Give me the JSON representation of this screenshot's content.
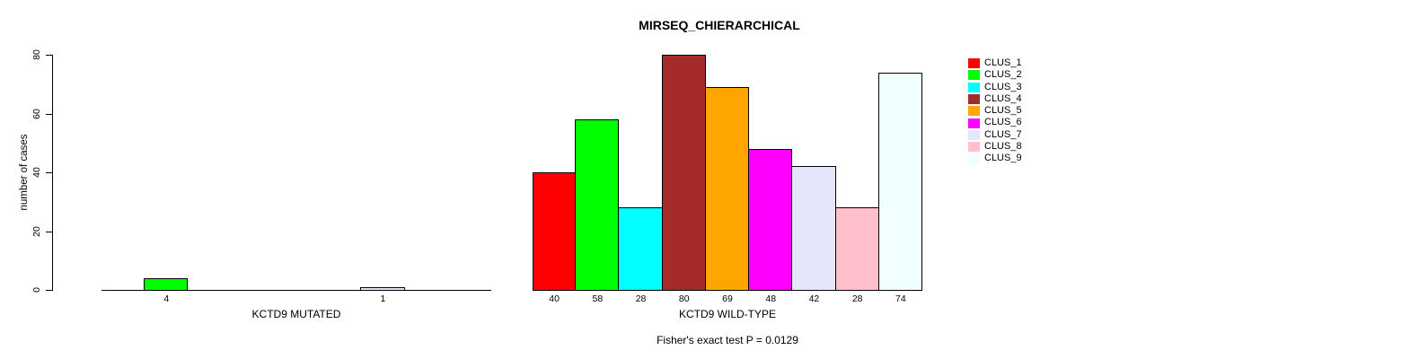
{
  "chart_data": {
    "type": "bar",
    "title": "MIRSEQ_CHIERARCHICAL",
    "ylabel": "number of cases",
    "ylim": [
      0,
      80
    ],
    "yticks": [
      0,
      20,
      40,
      60,
      80
    ],
    "grid": false,
    "legend_position": "right-inside",
    "categories": [
      "CLUS_1",
      "CLUS_2",
      "CLUS_3",
      "CLUS_4",
      "CLUS_5",
      "CLUS_6",
      "CLUS_7",
      "CLUS_8",
      "CLUS_9"
    ],
    "colors": [
      "#FF0000",
      "#00FF00",
      "#00FFFF",
      "#A52A2A",
      "#FFA500",
      "#FF00FF",
      "#E6E6FA",
      "#FFC0CB",
      "#F0FFFF"
    ],
    "series": [
      {
        "name": "KCTD9 MUTATED",
        "values": [
          0,
          4,
          0,
          0,
          0,
          0,
          1,
          0,
          0
        ],
        "bar_labels": [
          "",
          "4",
          "",
          "",
          "",
          "",
          "1",
          "",
          ""
        ]
      },
      {
        "name": "KCTD9 WILD-TYPE",
        "values": [
          40,
          58,
          28,
          80,
          69,
          48,
          42,
          28,
          74
        ],
        "bar_labels": [
          "40",
          "58",
          "28",
          "80",
          "69",
          "48",
          "42",
          "28",
          "74"
        ]
      }
    ],
    "annotation": "Fisher's exact test P = 0.0129"
  },
  "legend": {
    "items": [
      {
        "label": "CLUS_1",
        "color": "#FF0000"
      },
      {
        "label": "CLUS_2",
        "color": "#00FF00"
      },
      {
        "label": "CLUS_3",
        "color": "#00FFFF"
      },
      {
        "label": "CLUS_4",
        "color": "#A52A2A"
      },
      {
        "label": "CLUS_5",
        "color": "#FFA500"
      },
      {
        "label": "CLUS_6",
        "color": "#FF00FF"
      },
      {
        "label": "CLUS_7",
        "color": "#E6E6FA"
      },
      {
        "label": "CLUS_8",
        "color": "#FFC0CB"
      },
      {
        "label": "CLUS_9",
        "color": "#F0FFFF"
      }
    ]
  }
}
